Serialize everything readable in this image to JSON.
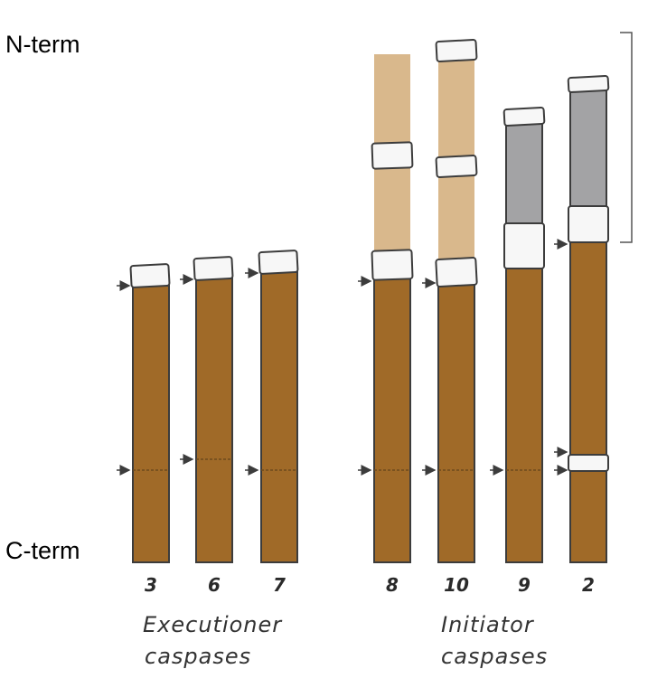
{
  "labels": {
    "n_term": "N-term",
    "c_term": "C-term"
  },
  "colors": {
    "catalytic_domain": "#a06a28",
    "prodomain_long": "#d9b88c",
    "prodomain_card": "#a3a3a5",
    "linker": "#f7f7f7",
    "outline": "#3c3c3c"
  },
  "groups": [
    {
      "name": "Executioner",
      "subname": "caspases",
      "members": [
        "3",
        "6",
        "7"
      ]
    },
    {
      "name": "Initiator",
      "subname": "caspases",
      "members": [
        "8",
        "10",
        "9",
        "2"
      ]
    }
  ],
  "caspases": [
    {
      "id": "3",
      "prodomain": "none"
    },
    {
      "id": "6",
      "prodomain": "none"
    },
    {
      "id": "7",
      "prodomain": "none"
    },
    {
      "id": "8",
      "prodomain": "long-tan"
    },
    {
      "id": "10",
      "prodomain": "long-tan"
    },
    {
      "id": "9",
      "prodomain": "gray"
    },
    {
      "id": "2",
      "prodomain": "gray"
    }
  ]
}
